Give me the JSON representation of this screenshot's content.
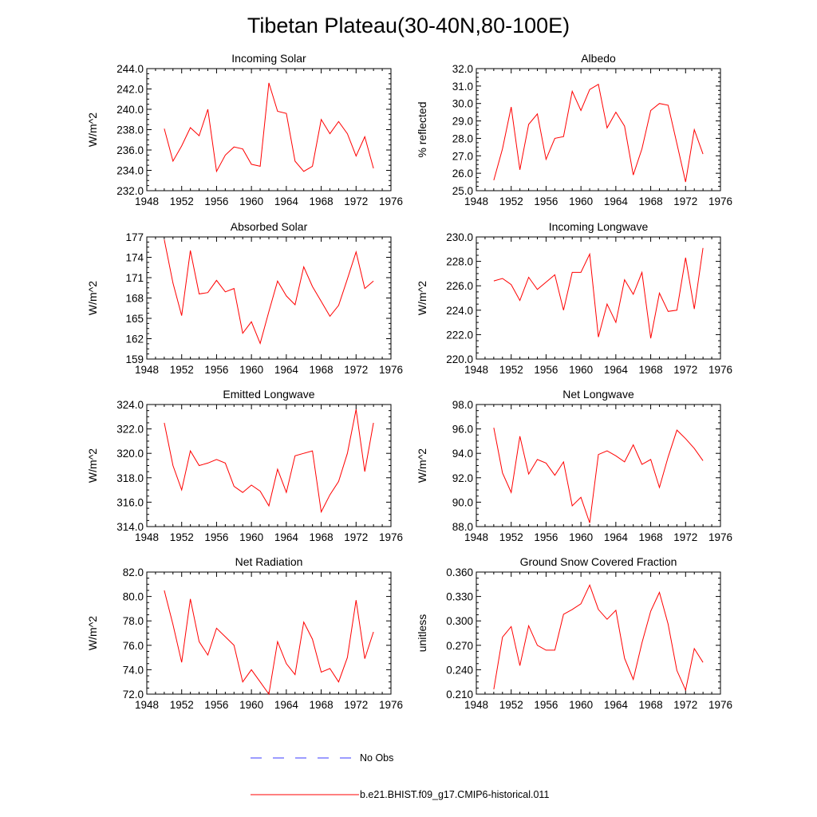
{
  "page_title": "Tibetan Plateau(30-40N,80-100E)",
  "legend": {
    "entries": [
      {
        "label": "No Obs",
        "style": "dashed",
        "color": "#3a3aff"
      },
      {
        "label": "b.e21.BHIST.f09_g17.CMIP6-historical.011",
        "style": "solid",
        "color": "#ff0000"
      }
    ]
  },
  "chart_data": [
    {
      "type": "line",
      "title": "Incoming Solar",
      "ylabel": "W/m^2",
      "xlim": [
        1948,
        1976
      ],
      "xticks": [
        1948,
        1952,
        1956,
        1960,
        1964,
        1968,
        1972,
        1976
      ],
      "ylim": [
        232.0,
        244.0
      ],
      "yticks": [
        "232.0",
        "234.0",
        "236.0",
        "238.0",
        "240.0",
        "242.0",
        "244.0"
      ],
      "x": [
        1950,
        1951,
        1952,
        1953,
        1954,
        1955,
        1956,
        1957,
        1958,
        1959,
        1960,
        1961,
        1962,
        1963,
        1964,
        1965,
        1966,
        1967,
        1968,
        1969,
        1970,
        1971,
        1972,
        1973,
        1974
      ],
      "series": [
        {
          "color": "#ff0000",
          "values": [
            238.1,
            234.9,
            236.4,
            238.2,
            237.4,
            240.0,
            233.9,
            235.5,
            236.3,
            236.1,
            234.6,
            234.4,
            242.6,
            239.8,
            239.6,
            234.9,
            233.9,
            234.4,
            239.0,
            237.6,
            238.8,
            237.6,
            235.4,
            237.3,
            234.2
          ]
        }
      ]
    },
    {
      "type": "line",
      "title": "Albedo",
      "ylabel": "% reflected",
      "xlim": [
        1948,
        1976
      ],
      "xticks": [
        1948,
        1952,
        1956,
        1960,
        1964,
        1968,
        1972,
        1976
      ],
      "ylim": [
        25.0,
        32.0
      ],
      "yticks": [
        "25.0",
        "26.0",
        "27.0",
        "28.0",
        "29.0",
        "30.0",
        "31.0",
        "32.0"
      ],
      "x": [
        1950,
        1951,
        1952,
        1953,
        1954,
        1955,
        1956,
        1957,
        1958,
        1959,
        1960,
        1961,
        1962,
        1963,
        1964,
        1965,
        1966,
        1967,
        1968,
        1969,
        1970,
        1971,
        1972,
        1973,
        1974
      ],
      "series": [
        {
          "color": "#ff0000",
          "values": [
            25.6,
            27.4,
            29.8,
            26.2,
            28.8,
            29.4,
            26.8,
            28.0,
            28.1,
            30.7,
            29.6,
            30.8,
            31.1,
            28.6,
            29.5,
            28.7,
            25.9,
            27.4,
            29.6,
            30.0,
            29.9,
            27.7,
            25.5,
            28.5,
            27.1
          ]
        }
      ]
    },
    {
      "type": "line",
      "title": "Absorbed Solar",
      "ylabel": "W/m^2",
      "xlim": [
        1948,
        1976
      ],
      "xticks": [
        1948,
        1952,
        1956,
        1960,
        1964,
        1968,
        1972,
        1976
      ],
      "ylim": [
        159,
        177
      ],
      "yticks": [
        "159",
        "162",
        "165",
        "168",
        "171",
        "174",
        "177"
      ],
      "x": [
        1950,
        1951,
        1952,
        1953,
        1954,
        1955,
        1956,
        1957,
        1958,
        1959,
        1960,
        1961,
        1962,
        1963,
        1964,
        1965,
        1966,
        1967,
        1968,
        1969,
        1970,
        1971,
        1972,
        1973,
        1974
      ],
      "series": [
        {
          "color": "#ff0000",
          "values": [
            176.6,
            170.2,
            165.4,
            175.0,
            168.6,
            168.8,
            170.6,
            168.9,
            169.4,
            162.8,
            164.5,
            161.3,
            166.0,
            170.5,
            168.3,
            167.0,
            172.6,
            169.7,
            167.5,
            165.3,
            166.9,
            170.8,
            174.8,
            169.4,
            170.5
          ]
        }
      ]
    },
    {
      "type": "line",
      "title": "Incoming Longwave",
      "ylabel": "W/m^2",
      "xlim": [
        1948,
        1976
      ],
      "xticks": [
        1948,
        1952,
        1956,
        1960,
        1964,
        1968,
        1972,
        1976
      ],
      "ylim": [
        220.0,
        230.0
      ],
      "yticks": [
        "220.0",
        "222.0",
        "224.0",
        "226.0",
        "228.0",
        "230.0"
      ],
      "x": [
        1950,
        1951,
        1952,
        1953,
        1954,
        1955,
        1956,
        1957,
        1958,
        1959,
        1960,
        1961,
        1962,
        1963,
        1964,
        1965,
        1966,
        1967,
        1968,
        1969,
        1970,
        1971,
        1972,
        1973,
        1974
      ],
      "series": [
        {
          "color": "#ff0000",
          "values": [
            226.4,
            226.6,
            226.1,
            224.8,
            226.7,
            225.7,
            226.3,
            226.9,
            224.0,
            227.1,
            227.1,
            228.6,
            221.8,
            224.5,
            223.0,
            226.5,
            225.3,
            227.1,
            221.7,
            225.4,
            223.9,
            224.0,
            228.3,
            224.1,
            229.1
          ]
        }
      ]
    },
    {
      "type": "line",
      "title": "Emitted Longwave",
      "ylabel": "W/m^2",
      "xlim": [
        1948,
        1976
      ],
      "xticks": [
        1948,
        1952,
        1956,
        1960,
        1964,
        1968,
        1972,
        1976
      ],
      "ylim": [
        314.0,
        324.0
      ],
      "yticks": [
        "314.0",
        "316.0",
        "318.0",
        "320.0",
        "322.0",
        "324.0"
      ],
      "x": [
        1950,
        1951,
        1952,
        1953,
        1954,
        1955,
        1956,
        1957,
        1958,
        1959,
        1960,
        1961,
        1962,
        1963,
        1964,
        1965,
        1966,
        1967,
        1968,
        1969,
        1970,
        1971,
        1972,
        1973,
        1974
      ],
      "series": [
        {
          "color": "#ff0000",
          "values": [
            322.5,
            319.0,
            317.0,
            320.2,
            319.0,
            319.2,
            319.5,
            319.2,
            317.3,
            316.8,
            317.4,
            316.9,
            315.7,
            318.7,
            316.8,
            319.8,
            320.0,
            320.2,
            315.2,
            316.6,
            317.7,
            320.0,
            323.6,
            318.5,
            322.5
          ]
        }
      ]
    },
    {
      "type": "line",
      "title": "Net Longwave",
      "ylabel": "W/m^2",
      "xlim": [
        1948,
        1976
      ],
      "xticks": [
        1948,
        1952,
        1956,
        1960,
        1964,
        1968,
        1972,
        1976
      ],
      "ylim": [
        88.0,
        98.0
      ],
      "yticks": [
        "88.0",
        "90.0",
        "92.0",
        "94.0",
        "96.0",
        "98.0"
      ],
      "x": [
        1950,
        1951,
        1952,
        1953,
        1954,
        1955,
        1956,
        1957,
        1958,
        1959,
        1960,
        1961,
        1962,
        1963,
        1964,
        1965,
        1966,
        1967,
        1968,
        1969,
        1970,
        1971,
        1972,
        1973,
        1974
      ],
      "series": [
        {
          "color": "#ff0000",
          "values": [
            96.1,
            92.4,
            90.8,
            95.4,
            92.3,
            93.5,
            93.2,
            92.2,
            93.3,
            89.7,
            90.4,
            88.3,
            93.9,
            94.2,
            93.8,
            93.3,
            94.7,
            93.1,
            93.5,
            91.2,
            93.7,
            95.9,
            95.2,
            94.4,
            93.4
          ]
        }
      ]
    },
    {
      "type": "line",
      "title": "Net Radiation",
      "ylabel": "W/m^2",
      "xlim": [
        1948,
        1976
      ],
      "xticks": [
        1948,
        1952,
        1956,
        1960,
        1964,
        1968,
        1972,
        1976
      ],
      "ylim": [
        72.0,
        82.0
      ],
      "yticks": [
        "72.0",
        "74.0",
        "76.0",
        "78.0",
        "80.0",
        "82.0"
      ],
      "x": [
        1950,
        1951,
        1952,
        1953,
        1954,
        1955,
        1956,
        1957,
        1958,
        1959,
        1960,
        1961,
        1962,
        1963,
        1964,
        1965,
        1966,
        1967,
        1968,
        1969,
        1970,
        1971,
        1972,
        1973,
        1974
      ],
      "series": [
        {
          "color": "#ff0000",
          "values": [
            80.5,
            77.7,
            74.6,
            79.8,
            76.3,
            75.2,
            77.4,
            76.7,
            76.0,
            73.0,
            74.0,
            73.0,
            72.0,
            76.3,
            74.5,
            73.6,
            77.9,
            76.5,
            73.8,
            74.1,
            73.0,
            75.0,
            79.7,
            74.9,
            77.1
          ]
        }
      ]
    },
    {
      "type": "line",
      "title": "Ground Snow Covered Fraction",
      "ylabel": "unitless",
      "xlim": [
        1948,
        1976
      ],
      "xticks": [
        1948,
        1952,
        1956,
        1960,
        1964,
        1968,
        1972,
        1976
      ],
      "ylim": [
        0.21,
        0.36
      ],
      "yticks": [
        "0.210",
        "0.240",
        "0.270",
        "0.300",
        "0.330",
        "0.360"
      ],
      "x": [
        1950,
        1951,
        1952,
        1953,
        1954,
        1955,
        1956,
        1957,
        1958,
        1959,
        1960,
        1961,
        1962,
        1963,
        1964,
        1965,
        1966,
        1967,
        1968,
        1969,
        1970,
        1971,
        1972,
        1973,
        1974
      ],
      "series": [
        {
          "color": "#ff0000",
          "values": [
            0.216,
            0.28,
            0.293,
            0.245,
            0.294,
            0.27,
            0.264,
            0.264,
            0.308,
            0.314,
            0.321,
            0.344,
            0.314,
            0.302,
            0.313,
            0.254,
            0.228,
            0.273,
            0.312,
            0.335,
            0.296,
            0.239,
            0.215,
            0.266,
            0.249
          ]
        }
      ]
    }
  ]
}
